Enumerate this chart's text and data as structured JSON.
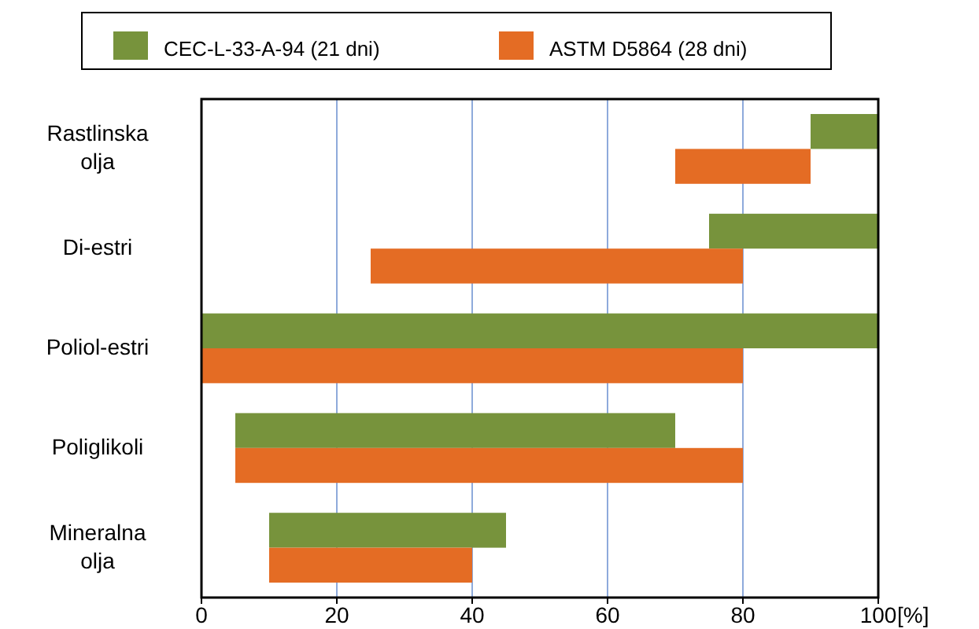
{
  "chart_data": {
    "type": "bar",
    "orientation": "horizontal",
    "categories": [
      "Rastlinska olja",
      "Di-estri",
      "Poliol-estri",
      "Poliglikoli",
      "Mineralna olja"
    ],
    "series": [
      {
        "name": "CEC-L-33-A-94 (21 dni)",
        "color": "#77933c",
        "base": [
          90,
          75,
          0,
          5,
          10
        ],
        "values": [
          10,
          25,
          100,
          65,
          35
        ]
      },
      {
        "name": "ASTM D5864 (28 dni)",
        "color": "#e46c24",
        "base": [
          70,
          25,
          0,
          5,
          10
        ],
        "values": [
          20,
          55,
          80,
          75,
          30
        ]
      }
    ],
    "xlim": [
      0,
      100
    ],
    "xticks": [
      0,
      20,
      40,
      60,
      80,
      100
    ],
    "xlabel": "[%]",
    "grid": "x",
    "legend": "top"
  }
}
